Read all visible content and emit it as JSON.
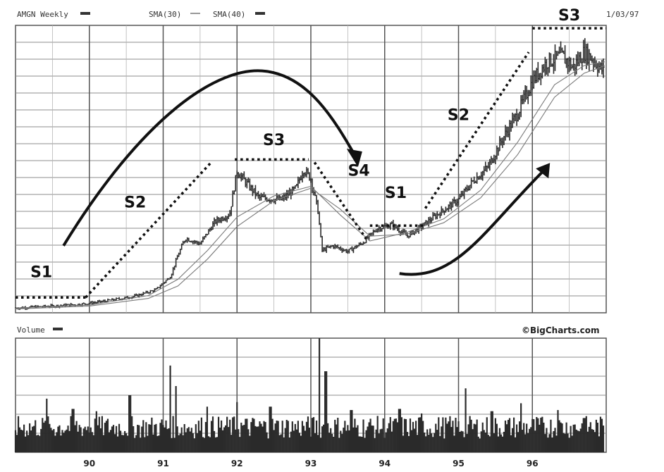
{
  "header": {
    "ticker_label": "AMGN Weekly",
    "sma30_label": "SMA(30)",
    "sma40_label": "SMA(40)",
    "date_label": "1/03/97"
  },
  "volume_panel": {
    "label": "Volume",
    "credit": "©BigCharts.com"
  },
  "colors": {
    "price": "#2a2a2a",
    "sma": "#7a7a7a",
    "grid": "#8c8c8c",
    "volume": "#2a2a2a",
    "annotation": "#111111"
  },
  "chart_data": [
    {
      "type": "line",
      "title": "AMGN Weekly",
      "x_unit": "year",
      "xlim": [
        1989.0,
        1997.0
      ],
      "x_tick_labels": [
        "90",
        "91",
        "92",
        "93",
        "94",
        "95",
        "96"
      ],
      "x_ticks": [
        1990,
        1991,
        1992,
        1993,
        1994,
        1995,
        1996
      ],
      "grid": true,
      "y_axis_labels_shown": false,
      "series": [
        {
          "name": "AMGN Weekly",
          "points": [
            [
              1989.0,
              5
            ],
            [
              1989.5,
              7
            ],
            [
              1989.9,
              9
            ],
            [
              1990.2,
              12
            ],
            [
              1990.6,
              17
            ],
            [
              1990.9,
              24
            ],
            [
              1991.1,
              38
            ],
            [
              1991.2,
              60
            ],
            [
              1991.3,
              78
            ],
            [
              1991.5,
              72
            ],
            [
              1991.7,
              95
            ],
            [
              1991.9,
              103
            ],
            [
              1992.0,
              148
            ],
            [
              1992.1,
              138
            ],
            [
              1992.3,
              120
            ],
            [
              1992.6,
              118
            ],
            [
              1992.8,
              130
            ],
            [
              1992.9,
              150
            ],
            [
              1993.0,
              140
            ],
            [
              1993.1,
              105
            ],
            [
              1993.15,
              65
            ],
            [
              1993.3,
              70
            ],
            [
              1993.5,
              64
            ],
            [
              1993.7,
              73
            ],
            [
              1993.9,
              88
            ],
            [
              1994.1,
              92
            ],
            [
              1994.3,
              80
            ],
            [
              1994.5,
              90
            ],
            [
              1994.7,
              102
            ],
            [
              1995.0,
              118
            ],
            [
              1995.2,
              138
            ],
            [
              1995.4,
              152
            ],
            [
              1995.6,
              182
            ],
            [
              1995.8,
              208
            ],
            [
              1996.0,
              242
            ],
            [
              1996.2,
              262
            ],
            [
              1996.4,
              268
            ],
            [
              1996.55,
              256
            ],
            [
              1996.7,
              272
            ],
            [
              1996.8,
              266
            ],
            [
              1996.98,
              250
            ]
          ]
        },
        {
          "name": "SMA(30)",
          "points": [
            [
              1989.0,
              5
            ],
            [
              1990.0,
              8
            ],
            [
              1990.8,
              18
            ],
            [
              1991.2,
              35
            ],
            [
              1991.6,
              65
            ],
            [
              1992.0,
              100
            ],
            [
              1992.5,
              122
            ],
            [
              1993.0,
              132
            ],
            [
              1993.4,
              102
            ],
            [
              1993.8,
              75
            ],
            [
              1994.3,
              84
            ],
            [
              1994.8,
              98
            ],
            [
              1995.3,
              128
            ],
            [
              1995.8,
              178
            ],
            [
              1996.3,
              238
            ],
            [
              1996.7,
              258
            ],
            [
              1996.98,
              262
            ]
          ]
        },
        {
          "name": "SMA(40)",
          "points": [
            [
              1989.0,
              4
            ],
            [
              1990.0,
              7
            ],
            [
              1990.8,
              15
            ],
            [
              1991.2,
              28
            ],
            [
              1991.6,
              56
            ],
            [
              1992.0,
              90
            ],
            [
              1992.5,
              117
            ],
            [
              1993.0,
              130
            ],
            [
              1993.4,
              108
            ],
            [
              1993.8,
              80
            ],
            [
              1994.3,
              82
            ],
            [
              1994.8,
              94
            ],
            [
              1995.3,
              120
            ],
            [
              1995.8,
              165
            ],
            [
              1996.3,
              225
            ],
            [
              1996.7,
              250
            ],
            [
              1996.98,
              258
            ]
          ]
        }
      ],
      "ylim": [
        0,
        300
      ],
      "annotations": [
        {
          "text": "S1",
          "x": 1989.35,
          "y": 37
        },
        {
          "text": "S2",
          "x": 1990.62,
          "y": 110
        },
        {
          "text": "S3",
          "x": 1992.5,
          "y": 175
        },
        {
          "text": "S4",
          "x": 1993.65,
          "y": 143
        },
        {
          "text": "S1",
          "x": 1994.15,
          "y": 120
        },
        {
          "text": "S2",
          "x": 1995.0,
          "y": 201
        },
        {
          "text": "S3",
          "x": 1996.5,
          "y": 305
        }
      ],
      "stage_lines": [
        {
          "from": [
            1989.0,
            16
          ],
          "to": [
            1989.95,
            16
          ]
        },
        {
          "from": [
            1989.95,
            16
          ],
          "to": [
            1991.65,
            157
          ]
        },
        {
          "from": [
            1991.97,
            160
          ],
          "to": [
            1992.97,
            160
          ]
        },
        {
          "from": [
            1993.05,
            157
          ],
          "to": [
            1993.75,
            77
          ]
        },
        {
          "from": [
            1993.8,
            91
          ],
          "to": [
            1994.55,
            91
          ]
        },
        {
          "from": [
            1994.55,
            109
          ],
          "to": [
            1995.95,
            272
          ]
        },
        {
          "from": [
            1996.0,
            297
          ],
          "to": [
            1997.0,
            297
          ]
        }
      ],
      "arrows": [
        {
          "direction": "arc-down",
          "from": [
            1989.65,
            70
          ],
          "peak": [
            1992.4,
            252
          ],
          "to": [
            1993.6,
            158
          ]
        },
        {
          "direction": "arc-up",
          "from": [
            1994.2,
            41
          ],
          "to": [
            1996.2,
            152
          ]
        }
      ]
    },
    {
      "type": "bar",
      "title": "Volume",
      "xlim": [
        1989.0,
        1997.0
      ],
      "x_tick_labels": [
        "90",
        "91",
        "92",
        "93",
        "94",
        "95",
        "96"
      ],
      "grid": true,
      "y_axis_labels_shown": false,
      "ylim": [
        0,
        100
      ],
      "baseline": 22,
      "spikes": [
        {
          "x": 1989.42,
          "value": 47
        },
        {
          "x": 1989.78,
          "value": 38
        },
        {
          "x": 1990.1,
          "value": 36
        },
        {
          "x": 1990.55,
          "value": 50
        },
        {
          "x": 1991.1,
          "value": 76
        },
        {
          "x": 1991.17,
          "value": 58
        },
        {
          "x": 1991.6,
          "value": 40
        },
        {
          "x": 1992.0,
          "value": 44
        },
        {
          "x": 1992.45,
          "value": 40
        },
        {
          "x": 1993.12,
          "value": 100
        },
        {
          "x": 1993.2,
          "value": 71
        },
        {
          "x": 1993.55,
          "value": 37
        },
        {
          "x": 1994.2,
          "value": 38
        },
        {
          "x": 1994.5,
          "value": 34
        },
        {
          "x": 1995.1,
          "value": 56
        },
        {
          "x": 1995.45,
          "value": 36
        },
        {
          "x": 1995.85,
          "value": 43
        },
        {
          "x": 1996.35,
          "value": 37
        },
        {
          "x": 1996.7,
          "value": 30
        }
      ]
    }
  ]
}
